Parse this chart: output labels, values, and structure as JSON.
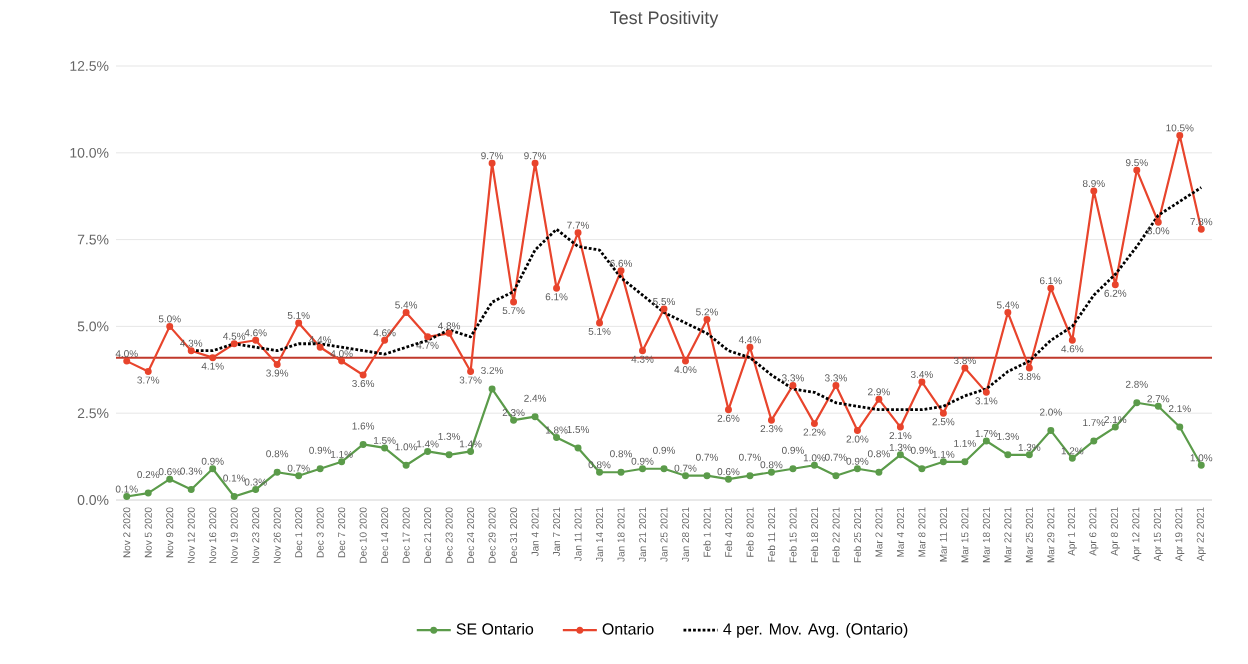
{
  "chart_data": {
    "type": "line",
    "title": "Test Positivity",
    "categories": [
      "Nov 2 2020",
      "Nov 5 2020",
      "Nov 9 2020",
      "Nov 12 2020",
      "Nov 16 2020",
      "Nov 19 2020",
      "Nov 23 2020",
      "Nov 26 2020",
      "Dec 1 2020",
      "Dec 3 2020",
      "Dec 7 2020",
      "Dec 10 2020",
      "Dec 14 2020",
      "Dec 17 2020",
      "Dec 21 2020",
      "Dec 23 2020",
      "Dec 24 2020",
      "Dec 29 2020",
      "Dec 31 2020",
      "Jan 4 2021",
      "Jan 7 2021",
      "Jan 11 2021",
      "Jan 14 2021",
      "Jan 18 2021",
      "Jan 21 2021",
      "Jan 25 2021",
      "Jan 28 2021",
      "Feb 1 2021",
      "Feb 4 2021",
      "Feb 8 2021",
      "Feb 11 2021",
      "Feb 15 2021",
      "Feb 18 2021",
      "Feb 22 2021",
      "Feb 25 2021",
      "Mar 2 2021",
      "Mar 4 2021",
      "Mar 8 2021",
      "Mar 11 2021",
      "Mar 15 2021",
      "Mar 18 2021",
      "Mar 22 2021",
      "Mar 25 2021",
      "Mar 29 2021",
      "Apr 1 2021",
      "Apr 6 2021",
      "Apr 8 2021",
      "Apr 12 2021",
      "Apr 15 2021",
      "Apr 19 2021",
      "Apr 22 2021"
    ],
    "series": [
      {
        "name": "SE Ontario",
        "color": "#5b9b4a",
        "marker": "circle",
        "values": [
          0.1,
          0.2,
          0.6,
          0.3,
          0.9,
          0.1,
          0.3,
          0.8,
          0.7,
          0.9,
          1.1,
          1.6,
          1.5,
          1.0,
          1.4,
          1.3,
          1.4,
          3.2,
          2.3,
          2.4,
          1.8,
          1.5,
          0.8,
          0.8,
          0.9,
          0.9,
          0.7,
          0.7,
          0.6,
          0.7,
          0.8,
          0.9,
          1.0,
          0.7,
          0.9,
          0.8,
          1.3,
          0.9,
          1.1,
          1.1,
          1.7,
          1.3,
          1.3,
          2.0,
          1.2,
          1.7,
          2.1,
          2.8,
          2.7,
          2.1,
          1.0
        ],
        "value_labels": [
          "0.1%",
          "0.2%",
          "0.6%",
          "0.3%",
          "0.9%",
          "0.1%",
          "0.3%",
          "0.8%",
          "0.7%",
          "0.9%",
          "1.1%",
          "1.6%",
          "1.5%",
          "1.0%",
          "1.4%",
          "1.3%",
          "1.4%",
          "3.2%",
          "2.3%",
          "2.4%",
          "1.8%",
          "1.5%",
          "0.8%",
          "0.8%",
          "0.9%",
          "0.9%",
          "0.7%",
          "0.7%",
          "0.6%",
          "0.7%",
          "0.8%",
          "0.9%",
          "1.0%",
          "0.7%",
          "0.9%",
          "0.8%",
          "1.3%",
          "0.9%",
          "1.1%",
          "1.1%",
          "1.7%",
          "1.3%",
          "1.3%",
          "2.0%",
          "1.2%",
          "1.7%",
          "2.1%",
          "2.8%",
          "2.7%",
          "2.1%",
          "1.0%"
        ]
      },
      {
        "name": "Ontario",
        "color": "#e8442c",
        "marker": "circle",
        "values": [
          4.0,
          3.7,
          5.0,
          4.3,
          4.1,
          4.5,
          4.6,
          3.9,
          5.1,
          4.4,
          4.0,
          3.6,
          4.6,
          5.4,
          4.7,
          4.8,
          3.7,
          9.7,
          5.7,
          9.7,
          6.1,
          7.7,
          5.1,
          6.6,
          4.3,
          5.5,
          4.0,
          5.2,
          2.6,
          4.4,
          2.3,
          3.3,
          2.2,
          3.3,
          2.0,
          2.9,
          2.1,
          3.4,
          2.5,
          3.8,
          3.1,
          5.4,
          3.8,
          6.1,
          4.6,
          8.9,
          6.2,
          9.5,
          8.0,
          10.5,
          7.8
        ],
        "value_labels": [
          "4.0%",
          "3.7%",
          "5.0%",
          "4.3%",
          "4.1%",
          "4.5%",
          "4.6%",
          "3.9%",
          "5.1%",
          "4.4%",
          "4.0%",
          "3.6%",
          "4.6%",
          "5.4%",
          "4.7%",
          "4.8%",
          "3.7%",
          "9.7%",
          "5.7%",
          "9.7%",
          "6.1%",
          "7.7%",
          "5.1%",
          "6.6%",
          "4.3%",
          "5.5%",
          "4.0%",
          "5.2%",
          "2.6%",
          "4.4%",
          "2.3%",
          "3.3%",
          "2.2%",
          "3.3%",
          "2.0%",
          "2.9%",
          "2.1%",
          "3.4%",
          "2.5%",
          "3.8%",
          "3.1%",
          "5.4%",
          "3.8%",
          "6.1%",
          "4.6%",
          "8.9%",
          "6.2%",
          "9.5%",
          "8.0%",
          "10.5%",
          "7.8%"
        ]
      },
      {
        "name": "4 per. Mov. Avg. (Ontario)",
        "color": "#000000",
        "marker": "none",
        "line_style": "dotted",
        "values": [
          null,
          null,
          null,
          4.3,
          4.3,
          4.5,
          4.4,
          4.3,
          4.5,
          4.5,
          4.4,
          4.3,
          4.2,
          4.4,
          4.6,
          4.9,
          4.7,
          5.7,
          6.0,
          7.2,
          7.8,
          7.3,
          7.2,
          6.4,
          5.9,
          5.4,
          5.1,
          4.8,
          4.3,
          4.1,
          3.6,
          3.2,
          3.1,
          2.8,
          2.7,
          2.6,
          2.6,
          2.6,
          2.7,
          3.0,
          3.2,
          3.7,
          4.0,
          4.6,
          5.0,
          5.9,
          6.5,
          7.3,
          8.2,
          8.6,
          9.0
        ]
      }
    ],
    "ylim": [
      0,
      12.5
    ],
    "yticks": [
      {
        "value": 0,
        "label": "0.0%"
      },
      {
        "value": 2.5,
        "label": "2.5%"
      },
      {
        "value": 5,
        "label": "5.0%"
      },
      {
        "value": 7.5,
        "label": "7.5%"
      },
      {
        "value": 10,
        "label": "10.0%"
      },
      {
        "value": 12.5,
        "label": "12.5%"
      }
    ],
    "ref_lines": [
      {
        "axis": "y",
        "value": 4.1,
        "color": "#c0392b"
      }
    ],
    "grid": "y",
    "legend": "bottom"
  }
}
